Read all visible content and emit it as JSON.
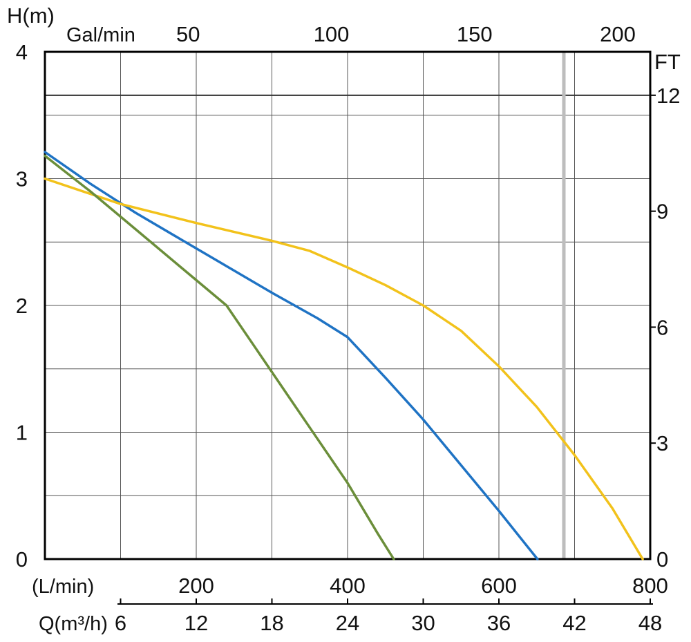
{
  "chart_data": {
    "type": "line",
    "y_left": {
      "label": "H(m)",
      "ylim": [
        0,
        4
      ],
      "ticks": [
        0,
        1,
        2,
        3,
        4
      ]
    },
    "y_right": {
      "label": "FT",
      "ticks": [
        0,
        3,
        6,
        9,
        12
      ]
    },
    "x_bottom": {
      "label": "(L/min)",
      "xlim": [
        0,
        800
      ],
      "ticks": [
        200,
        400,
        600,
        800
      ]
    },
    "x_top": {
      "label": "Gal/min",
      "ticks": [
        50,
        100,
        150,
        200
      ]
    },
    "x_second": {
      "label": "Q(m³/h)",
      "ticks": [
        6,
        12,
        18,
        24,
        30,
        36,
        42,
        48
      ]
    },
    "grid": true,
    "series": [
      {
        "color": "#1f73c4",
        "x": [
          0,
          60,
          120,
          180,
          240,
          300,
          360,
          400,
          450,
          500,
          550,
          600,
          651
        ],
        "y": [
          3.21,
          2.96,
          2.73,
          2.52,
          2.31,
          2.1,
          1.9,
          1.75,
          1.43,
          1.1,
          0.74,
          0.38,
          0
        ]
      },
      {
        "color": "#f2c21b",
        "x": [
          0,
          100,
          200,
          250,
          300,
          350,
          400,
          450,
          500,
          550,
          600,
          650,
          700,
          750,
          790
        ],
        "y": [
          3.0,
          2.8,
          2.65,
          2.58,
          2.51,
          2.43,
          2.3,
          2.16,
          2.0,
          1.8,
          1.52,
          1.2,
          0.82,
          0.4,
          0
        ]
      },
      {
        "color": "#6b8e3a",
        "x": [
          0,
          60,
          120,
          180,
          240,
          280,
          320,
          360,
          400,
          440,
          461
        ],
        "y": [
          3.18,
          2.9,
          2.6,
          2.3,
          2.0,
          1.65,
          1.3,
          0.95,
          0.6,
          0.2,
          0
        ]
      }
    ]
  }
}
